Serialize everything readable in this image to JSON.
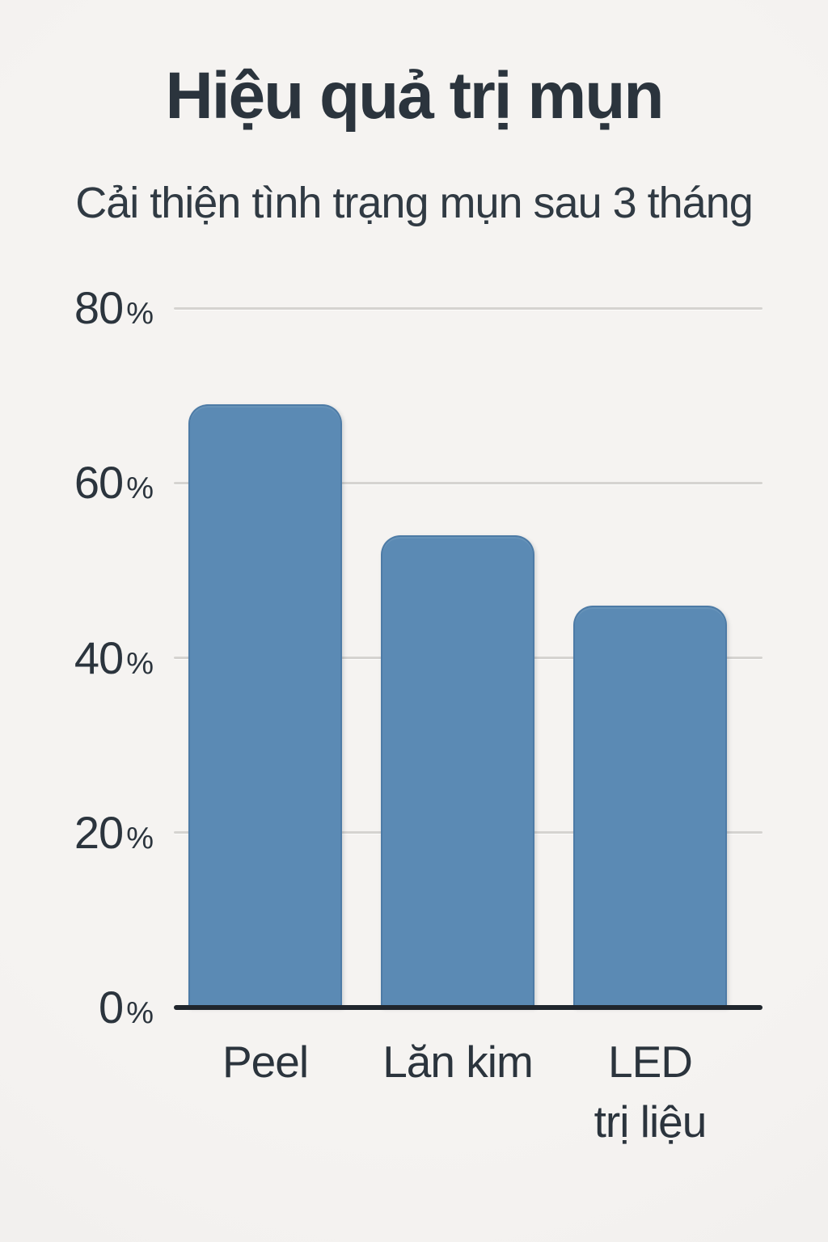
{
  "colors": {
    "background": "#f3f1ef",
    "bar_fill": "#5b8ab4",
    "bar_edge": "#4d7ba6",
    "heading_text": "#2b343d",
    "subtitle_text": "#303a43",
    "axis_text": "#2b343d",
    "gridline": "#d5d3d0",
    "axis_line": "#20262d"
  },
  "chart_data": {
    "type": "bar",
    "title": "Hiệu quả trị mụn",
    "subtitle": "Cải thiện tình trạng mụn sau 3 tháng",
    "categories": [
      "Peel",
      "Lăn kim",
      "LED trị liệu"
    ],
    "category_display": [
      "Peel",
      "Lăn kim",
      "LED\ntrị liệu"
    ],
    "values": [
      69,
      54,
      46
    ],
    "unit": "%",
    "xlabel": "",
    "ylabel": "",
    "ylim": [
      0,
      80
    ],
    "yticks": [
      0,
      20,
      40,
      60,
      80
    ],
    "ytick_labels": [
      "0%",
      "20%",
      "40%",
      "60%",
      "80%"
    ],
    "grid": true,
    "legend": false,
    "bar_color": "#5b8ab4"
  }
}
